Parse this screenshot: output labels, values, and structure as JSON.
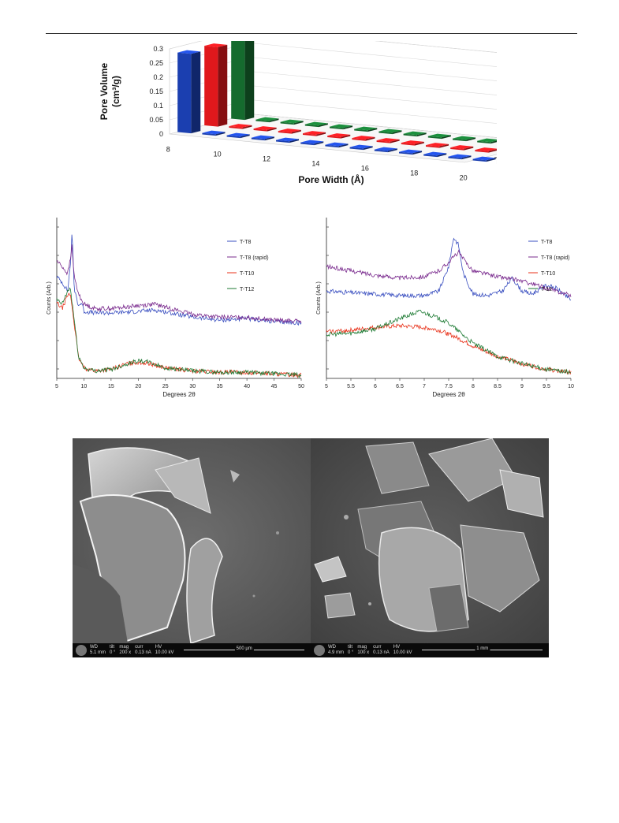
{
  "chart_data": [
    {
      "type": "bar",
      "subtype": "3d-bar",
      "ylabel_line1": "Pore Volume",
      "ylabel_line2": "(cm³/g)",
      "xlabel": "Pore Width (Å)",
      "y_ticks": [
        "0.3",
        "0.25",
        "0.2",
        "0.15",
        "0.1",
        "0.05",
        "0"
      ],
      "x_ticks": [
        "8",
        "10",
        "12",
        "14",
        "16",
        "18",
        "20"
      ],
      "ylim": [
        0,
        0.3
      ],
      "categories": [
        8,
        9,
        10,
        11,
        12,
        13,
        14,
        15,
        16,
        17,
        18,
        19,
        20
      ],
      "series": [
        {
          "name": "T-T8",
          "color": "#1b3fb0",
          "values": [
            0.28,
            0.005,
            0.005,
            0.005,
            0.005,
            0.005,
            0.005,
            0.005,
            0.005,
            0.005,
            0.005,
            0.005,
            0.005
          ]
        },
        {
          "name": "T-T10",
          "color": "#e0181c",
          "values": [
            0.28,
            0.005,
            0.005,
            0.005,
            0.005,
            0.005,
            0.005,
            0.005,
            0.005,
            0.005,
            0.005,
            0.005,
            0.005
          ]
        },
        {
          "name": "T-T12",
          "color": "#156b2e",
          "values": [
            0.28,
            0.005,
            0.005,
            0.005,
            0.005,
            0.005,
            0.005,
            0.005,
            0.005,
            0.005,
            0.005,
            0.005,
            0.005
          ]
        }
      ]
    },
    {
      "type": "line",
      "xlabel": "Degrees 2θ",
      "ylabel": "Counts (Arb.)",
      "xlim": [
        5,
        50
      ],
      "x_ticks": [
        "5",
        "10",
        "15",
        "20",
        "25",
        "30",
        "35",
        "40",
        "45",
        "50"
      ],
      "legend": "top-right",
      "series": [
        {
          "name": "T-T8",
          "color": "#3a4fc0",
          "points": [
            [
              5,
              0.68
            ],
            [
              6,
              0.64
            ],
            [
              7,
              0.58
            ],
            [
              7.6,
              0.8
            ],
            [
              7.8,
              1.0
            ],
            [
              8.2,
              0.6
            ],
            [
              9,
              0.48
            ],
            [
              9.6,
              0.5
            ],
            [
              10,
              0.44
            ],
            [
              12,
              0.43
            ],
            [
              15,
              0.43
            ],
            [
              20,
              0.44
            ],
            [
              23,
              0.45
            ],
            [
              26,
              0.43
            ],
            [
              30,
              0.4
            ],
            [
              35,
              0.38
            ],
            [
              40,
              0.39
            ],
            [
              45,
              0.37
            ],
            [
              50,
              0.36
            ]
          ]
        },
        {
          "name": "T-T8 (rapid)",
          "color": "#7a2b8e",
          "points": [
            [
              5,
              0.79
            ],
            [
              6,
              0.75
            ],
            [
              7,
              0.7
            ],
            [
              7.6,
              0.82
            ],
            [
              7.8,
              0.9
            ],
            [
              8.2,
              0.68
            ],
            [
              9,
              0.56
            ],
            [
              10,
              0.49
            ],
            [
              12,
              0.46
            ],
            [
              15,
              0.46
            ],
            [
              20,
              0.48
            ],
            [
              23,
              0.49
            ],
            [
              26,
              0.46
            ],
            [
              30,
              0.42
            ],
            [
              35,
              0.4
            ],
            [
              40,
              0.4
            ],
            [
              45,
              0.38
            ],
            [
              50,
              0.37
            ]
          ]
        },
        {
          "name": "T-T10",
          "color": "#e8321a",
          "points": [
            [
              5,
              0.5
            ],
            [
              6,
              0.46
            ],
            [
              7,
              0.55
            ],
            [
              7.5,
              0.56
            ],
            [
              8,
              0.42
            ],
            [
              9,
              0.12
            ],
            [
              10,
              0.05
            ],
            [
              12,
              0.03
            ],
            [
              15,
              0.04
            ],
            [
              18,
              0.08
            ],
            [
              20,
              0.09
            ],
            [
              22,
              0.08
            ],
            [
              25,
              0.05
            ],
            [
              30,
              0.03
            ],
            [
              35,
              0.02
            ],
            [
              40,
              0.02
            ],
            [
              45,
              0.01
            ],
            [
              50,
              0.0
            ]
          ]
        },
        {
          "name": "T-T12",
          "color": "#1d7a33",
          "points": [
            [
              5,
              0.52
            ],
            [
              6,
              0.49
            ],
            [
              7,
              0.58
            ],
            [
              7.5,
              0.6
            ],
            [
              8,
              0.45
            ],
            [
              9,
              0.13
            ],
            [
              10,
              0.05
            ],
            [
              12,
              0.03
            ],
            [
              15,
              0.04
            ],
            [
              18,
              0.08
            ],
            [
              20,
              0.1
            ],
            [
              22,
              0.09
            ],
            [
              25,
              0.05
            ],
            [
              30,
              0.03
            ],
            [
              35,
              0.02
            ],
            [
              40,
              0.02
            ],
            [
              45,
              0.01
            ],
            [
              50,
              0.0
            ]
          ]
        }
      ]
    },
    {
      "type": "line",
      "xlabel": "Degrees 2θ",
      "ylabel": "Counts (Arb.)",
      "xlim": [
        5,
        10
      ],
      "x_ticks": [
        "5",
        "5.5",
        "6",
        "6.5",
        "7",
        "7.5",
        "8",
        "8.5",
        "9",
        "9.5",
        "10"
      ],
      "legend": "top-right",
      "series": [
        {
          "name": "T-T8",
          "color": "#3a4fc0",
          "points": [
            [
              5,
              0.58
            ],
            [
              5.5,
              0.57
            ],
            [
              6,
              0.56
            ],
            [
              6.5,
              0.55
            ],
            [
              7,
              0.55
            ],
            [
              7.3,
              0.58
            ],
            [
              7.5,
              0.75
            ],
            [
              7.6,
              0.95
            ],
            [
              7.7,
              0.9
            ],
            [
              7.8,
              0.7
            ],
            [
              8,
              0.56
            ],
            [
              8.3,
              0.55
            ],
            [
              8.6,
              0.58
            ],
            [
              8.8,
              0.67
            ],
            [
              9,
              0.58
            ],
            [
              9.2,
              0.56
            ],
            [
              9.5,
              0.62
            ],
            [
              9.7,
              0.6
            ],
            [
              10,
              0.52
            ]
          ]
        },
        {
          "name": "T-T8 (rapid)",
          "color": "#7a2b8e",
          "points": [
            [
              5,
              0.75
            ],
            [
              5.5,
              0.72
            ],
            [
              6,
              0.69
            ],
            [
              6.5,
              0.67
            ],
            [
              7,
              0.68
            ],
            [
              7.3,
              0.72
            ],
            [
              7.5,
              0.78
            ],
            [
              7.7,
              0.85
            ],
            [
              7.8,
              0.8
            ],
            [
              8,
              0.72
            ],
            [
              8.5,
              0.68
            ],
            [
              9,
              0.65
            ],
            [
              9.5,
              0.6
            ],
            [
              10,
              0.55
            ]
          ]
        },
        {
          "name": "T-T10",
          "color": "#e8321a",
          "points": [
            [
              5,
              0.3
            ],
            [
              5.5,
              0.31
            ],
            [
              6,
              0.33
            ],
            [
              6.5,
              0.34
            ],
            [
              7,
              0.33
            ],
            [
              7.3,
              0.31
            ],
            [
              7.6,
              0.27
            ],
            [
              8,
              0.2
            ],
            [
              8.5,
              0.13
            ],
            [
              9,
              0.08
            ],
            [
              9.5,
              0.04
            ],
            [
              10,
              0.02
            ]
          ]
        },
        {
          "name": "T-12",
          "color": "#1d7a33",
          "points": [
            [
              5,
              0.28
            ],
            [
              5.5,
              0.29
            ],
            [
              6,
              0.32
            ],
            [
              6.5,
              0.39
            ],
            [
              6.9,
              0.44
            ],
            [
              7.1,
              0.42
            ],
            [
              7.5,
              0.36
            ],
            [
              8,
              0.22
            ],
            [
              8.5,
              0.13
            ],
            [
              9,
              0.08
            ],
            [
              9.5,
              0.04
            ],
            [
              10,
              0.02
            ]
          ]
        }
      ]
    }
  ],
  "sem_images": [
    {
      "wd_label": "WD",
      "wd_value": "5.1 mm",
      "tilt_label": "tilt",
      "tilt_value": "0 °",
      "mag_label": "mag",
      "mag_value": "200 x",
      "curr_label": "curr",
      "curr_value": "0.13 nA",
      "hv_label": "HV",
      "hv_value": "10.00 kV",
      "scale": "500 µm"
    },
    {
      "wd_label": "WD",
      "wd_value": "4.9 mm",
      "tilt_label": "tilt",
      "tilt_value": "0 °",
      "mag_label": "mag",
      "mag_value": "100 x",
      "curr_label": "curr",
      "curr_value": "0.13 nA",
      "hv_label": "HV",
      "hv_value": "10.00 kV",
      "scale": "1 mm"
    }
  ]
}
